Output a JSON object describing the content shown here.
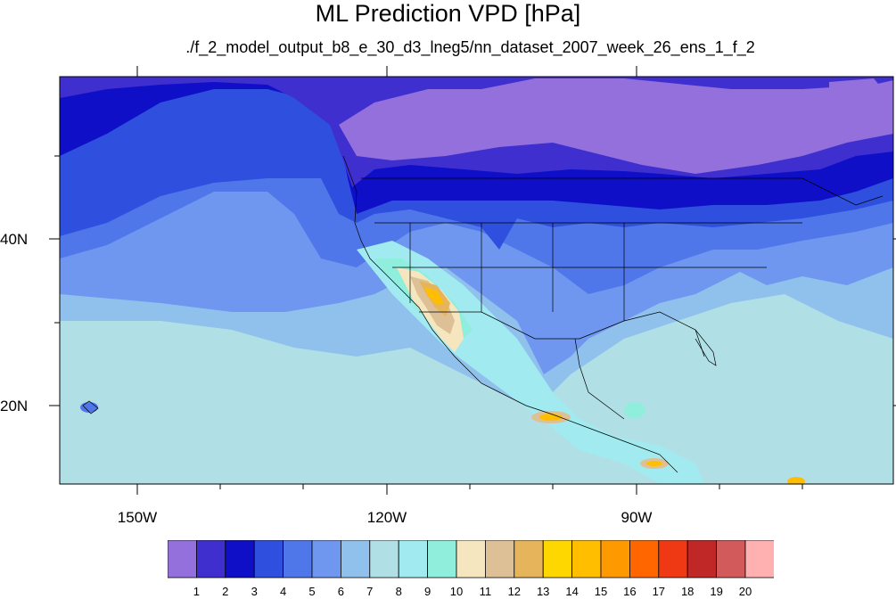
{
  "title": "ML Prediction VPD [hPa]",
  "subtitle": "./f_2_model_output_b8_e_30_d3_lneg5/nn_dataset_2007_week_26_ens_1_f_2",
  "axes": {
    "lat_labels": [
      "40N",
      "20N"
    ],
    "lon_labels": [
      "150W",
      "120W",
      "90W"
    ]
  },
  "colorbar": {
    "labels": [
      "1",
      "2",
      "3",
      "4",
      "5",
      "6",
      "7",
      "8",
      "9",
      "10",
      "11",
      "12",
      "13",
      "14",
      "15",
      "16",
      "17",
      "18",
      "19",
      "20"
    ],
    "colors": [
      "#9370db",
      "#3f2fcf",
      "#0f0fc8",
      "#2f4fdf",
      "#4f77ea",
      "#6f97f0",
      "#90c0ec",
      "#b0e0e6",
      "#a0eaf0",
      "#90eedc",
      "#f5e6c0",
      "#dec096",
      "#e6b45a",
      "#ffd700",
      "#ffbf00",
      "#ff9900",
      "#ff6600",
      "#ee3914",
      "#c02828",
      "#d25a5a",
      "#ffb0b0"
    ]
  },
  "colors": {
    "land_lines": "#000000",
    "frame": "#000000"
  }
}
